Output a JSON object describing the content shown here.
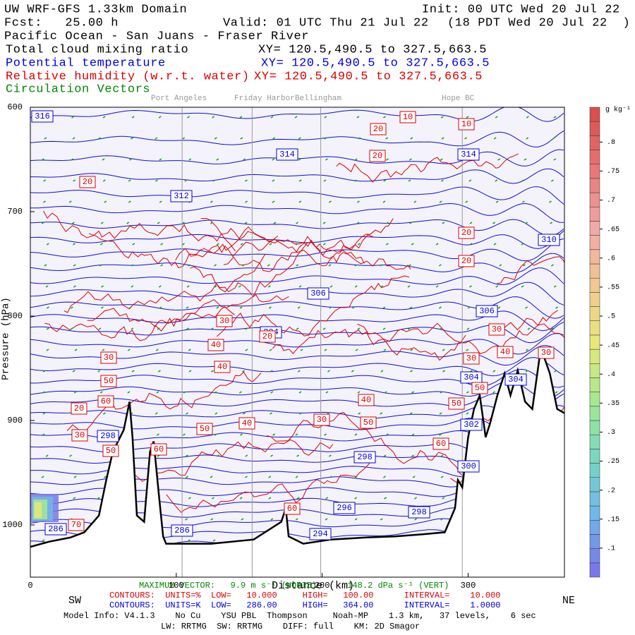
{
  "chart_data": {
    "type": "cross-section",
    "header": {
      "model": "UW WRF-GFS 1.33km Domain",
      "init": "Init: 00 UTC Wed 20 Jul 22",
      "fcst": "Fcst:   25.00 h",
      "valid": "Valid: 01 UTC Thu 21 Jul 22",
      "local": "(18 PDT Wed 20 Jul 22  )",
      "region": "Pacific Ocean - San Juans - Fraser River"
    },
    "fields": [
      {
        "name": "Total cloud mixing ratio",
        "xy": "XY= 120.5,490.5 to 327.5,663.5",
        "color": "#000000"
      },
      {
        "name": "Potential temperature",
        "xy": "XY= 120.5,490.5 to 327.5,663.5",
        "color": "#0000dd"
      },
      {
        "name": "Relative humidity (w.r.t. water)",
        "xy": "XY= 120.5,490.5 to 327.5,663.5",
        "color": "#dd0000"
      },
      {
        "name": "Circulation Vectors",
        "color": "#008800"
      }
    ],
    "locations": [
      {
        "name": "Port Angeles",
        "x": 104
      },
      {
        "name": "Friday Harbor",
        "x": 152
      },
      {
        "name": "Bellingham",
        "x": 199
      },
      {
        "name": "Hope BC",
        "x": 296
      }
    ],
    "y_label": "Pressure (hPa)",
    "x_label": "Distance (km)",
    "x_left": "SW",
    "x_right": "NE",
    "xlim": [
      0,
      366
    ],
    "xticks": [
      0,
      100,
      200,
      300
    ],
    "ylim": [
      600,
      1050
    ],
    "y_inverted": true,
    "yticks": [
      600,
      700,
      800,
      900,
      1000
    ],
    "terrain_x": [
      0,
      13,
      27.5,
      37,
      47,
      52,
      56.5,
      64,
      68,
      70,
      73,
      78,
      82,
      84.5,
      88,
      91,
      93,
      124,
      153,
      172,
      175,
      177,
      187,
      206,
      230,
      250,
      269,
      284,
      291,
      293,
      296,
      300,
      304,
      308,
      312,
      315,
      320,
      325,
      329,
      334,
      339,
      344,
      349,
      351,
      356,
      361,
      366
    ],
    "terrain_p": [
      1021,
      1016,
      1012,
      1007,
      991,
      957,
      930,
      909,
      882,
      916,
      991,
      997,
      930,
      920,
      970,
      1011,
      1018,
      1018,
      1014,
      997,
      984,
      1011,
      1018,
      1014,
      1012,
      1011,
      1009,
      1007,
      984,
      957,
      964,
      916,
      889,
      876,
      916,
      903,
      876,
      855,
      876,
      852,
      882,
      889,
      839,
      835,
      855,
      889,
      893
    ],
    "theta_labels": [
      316,
      314,
      314,
      312,
      310,
      306,
      306,
      304,
      304,
      304,
      302,
      298,
      298,
      300,
      296,
      298,
      294,
      286,
      286
    ],
    "rh_labels": [
      10,
      10,
      20,
      20,
      20,
      20,
      20,
      30,
      20,
      40,
      30,
      40,
      50,
      60,
      20,
      30,
      30,
      40,
      30,
      50,
      40,
      50,
      50,
      40,
      30,
      50,
      30,
      50,
      60,
      60,
      60,
      70
    ],
    "colorbar": {
      "label": "g kg⁻¹",
      "lim": [
        0.05,
        0.86
      ],
      "ticks": [
        {
          "value": 0.8,
          "label": ".8"
        },
        {
          "value": 0.75,
          "label": ".75"
        },
        {
          "value": 0.7,
          "label": ".7"
        },
        {
          "value": 0.65,
          "label": ".65"
        },
        {
          "value": 0.6,
          "label": ".6"
        },
        {
          "value": 0.55,
          "label": ".55"
        },
        {
          "value": 0.5,
          "label": ".5"
        },
        {
          "value": 0.45,
          "label": ".45"
        },
        {
          "value": 0.4,
          "label": ".4"
        },
        {
          "value": 0.35,
          "label": ".35"
        },
        {
          "value": 0.3,
          "label": ".3"
        },
        {
          "value": 0.25,
          "label": ".25"
        },
        {
          "value": 0.2,
          "label": ".2"
        },
        {
          "value": 0.15,
          "label": ".15"
        },
        {
          "value": 0.1,
          "label": ".1"
        }
      ],
      "colors": [
        "#7878e8",
        "#70b8e8",
        "#78d8c0",
        "#a8e890",
        "#e8e878",
        "#f0c890",
        "#f0a8a8",
        "#e87878",
        "#d85050"
      ]
    },
    "footer": {
      "vector": "MAXIMUM VECTOR:   9.9 m s⁻¹ (HORIZ)      148.2 dPa s⁻¹ (VERT)",
      "rh_contours": "CONTOURS:  UNITS=%  LOW=   10.000     HIGH=   100.00      INTERVAL=    10.000",
      "theta_contours": "CONTOURS:  UNITS=K  LOW=   286.00     HIGH=   364.00      INTERVAL=    1.0000",
      "model_info": "Model Info: V4.1.3    No Cu    YSU PBL  Thompson     Noah-MP    1.3 km,   37 levels,    6 sec",
      "physics": "LW: RRTMG  SW: RRTMG    DIFF: full    KM: 2D Smagor"
    }
  }
}
